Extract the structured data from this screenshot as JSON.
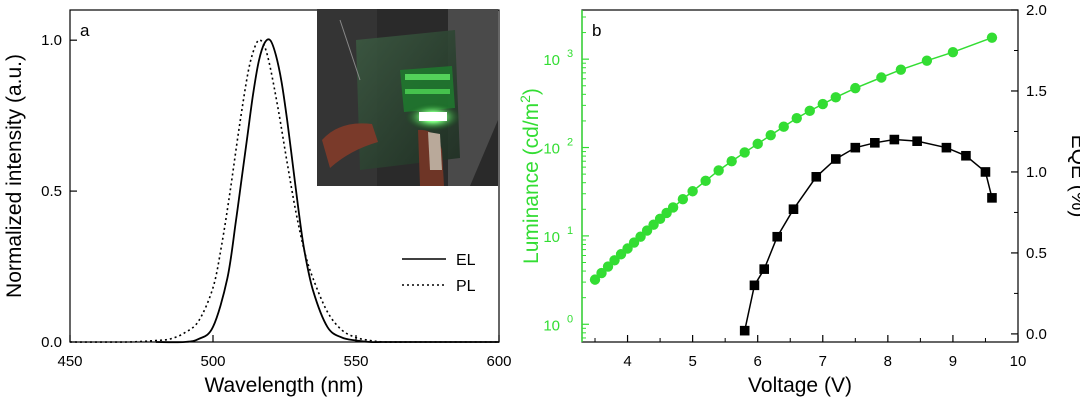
{
  "chart_data": [
    {
      "type": "line",
      "panel_label": "a",
      "xlabel": "Wavelength (nm)",
      "ylabel": "Normalized intensity (a.u.)",
      "xlim": [
        450,
        600
      ],
      "ylim": [
        0,
        1.1
      ],
      "x_ticks": [
        450,
        500,
        550,
        600
      ],
      "x_tick_labels": [
        "450",
        "500",
        "550",
        "600"
      ],
      "y_ticks": [
        0,
        0.5,
        1.0
      ],
      "y_tick_labels": [
        "0.0",
        "0.5",
        "1.0"
      ],
      "grid": false,
      "legend_position": "bottom-right",
      "series": [
        {
          "name": "EL",
          "style": "solid",
          "color": "#000000",
          "x": [
            480,
            490,
            495,
            500,
            505,
            508,
            510,
            512,
            514,
            516,
            518,
            520,
            522,
            524,
            526,
            528,
            530,
            532,
            535,
            540,
            545,
            550,
            555,
            560,
            570,
            580,
            590,
            600
          ],
          "y": [
            0.0,
            0.0,
            0.01,
            0.05,
            0.21,
            0.4,
            0.54,
            0.68,
            0.82,
            0.93,
            0.99,
            1.0,
            0.95,
            0.86,
            0.73,
            0.58,
            0.43,
            0.3,
            0.17,
            0.05,
            0.015,
            0.005,
            0.0,
            0.0,
            0.0,
            0.0,
            0.0,
            0.0
          ]
        },
        {
          "name": "PL",
          "style": "dotted",
          "color": "#000000",
          "x": [
            450,
            470,
            480,
            485,
            490,
            495,
            500,
            503,
            506,
            509,
            512,
            514,
            516,
            518,
            520,
            523,
            526,
            529,
            532,
            535,
            540,
            545,
            550,
            555,
            560,
            570,
            600
          ],
          "y": [
            0.0,
            0.0,
            0.005,
            0.01,
            0.03,
            0.07,
            0.18,
            0.32,
            0.5,
            0.7,
            0.88,
            0.96,
            1.0,
            0.98,
            0.91,
            0.76,
            0.59,
            0.43,
            0.3,
            0.21,
            0.1,
            0.04,
            0.015,
            0.005,
            0.0,
            0.0,
            0.0
          ]
        }
      ]
    },
    {
      "type": "line",
      "panel_label": "b",
      "xlabel": "Voltage (V)",
      "ylabel_left": "Luminance (cd/m",
      "ylabel_left_sup": "2",
      "ylabel_left_close": ")",
      "ylabel_right": "EQE (%)",
      "xlim": [
        3.3,
        10
      ],
      "x_ticks": [
        4,
        5,
        6,
        7,
        8,
        9,
        10
      ],
      "x_tick_labels": [
        "4",
        "5",
        "6",
        "7",
        "8",
        "9",
        "10"
      ],
      "y_left_scale": "log",
      "y_left_ylim": [
        0.63,
        3600
      ],
      "y_left_ticks": [
        1,
        10,
        100,
        1000
      ],
      "y_left_tick_base": "10",
      "y_left_tick_exponents": [
        "0",
        "1",
        "2",
        "3"
      ],
      "y_right_ylim": [
        -0.05,
        2.0
      ],
      "y_right_ticks": [
        0.0,
        0.5,
        1.0,
        1.5,
        2.0
      ],
      "y_right_tick_labels": [
        "0.0",
        "0.5",
        "1.0",
        "1.5",
        "2.0"
      ],
      "grid": false,
      "series": [
        {
          "name": "Luminance",
          "axis": "left",
          "marker": "circle",
          "color": "#33dd33",
          "x": [
            3.5,
            3.6,
            3.7,
            3.8,
            3.9,
            4.0,
            4.1,
            4.2,
            4.3,
            4.4,
            4.5,
            4.6,
            4.7,
            4.85,
            5.0,
            5.2,
            5.4,
            5.6,
            5.8,
            6.0,
            6.2,
            6.4,
            6.6,
            6.8,
            7.0,
            7.2,
            7.5,
            7.9,
            8.2,
            8.6,
            9.0,
            9.6
          ],
          "y": [
            3.2,
            3.8,
            4.5,
            5.3,
            6.2,
            7.2,
            8.4,
            9.8,
            11.5,
            13.4,
            15.6,
            18.2,
            21,
            26,
            32,
            42,
            55,
            70,
            88,
            110,
            138,
            172,
            215,
            260,
            310,
            370,
            470,
            620,
            760,
            960,
            1200,
            1750
          ]
        },
        {
          "name": "EQE",
          "axis": "right",
          "marker": "square",
          "color": "#000000",
          "x": [
            5.8,
            5.95,
            6.1,
            6.3,
            6.55,
            6.9,
            7.2,
            7.5,
            7.8,
            8.1,
            8.45,
            8.9,
            9.2,
            9.5,
            9.6
          ],
          "y": [
            0.02,
            0.3,
            0.4,
            0.6,
            0.77,
            0.97,
            1.08,
            1.15,
            1.18,
            1.2,
            1.19,
            1.15,
            1.1,
            1.0,
            0.84
          ]
        }
      ]
    }
  ]
}
